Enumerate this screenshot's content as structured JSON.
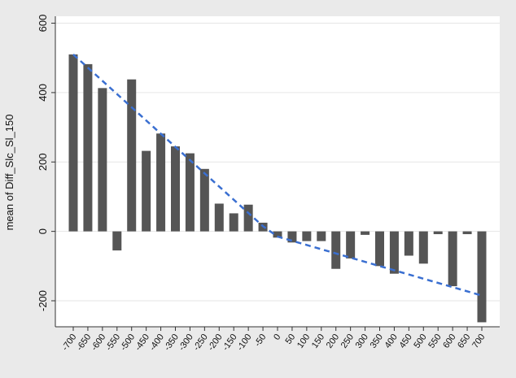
{
  "chart_data": {
    "type": "bar",
    "title": "",
    "xlabel": "",
    "ylabel": "mean of Diff_Slc_Sl_150",
    "x": [
      -700,
      -650,
      -600,
      -550,
      -500,
      -450,
      -400,
      -350,
      -300,
      -250,
      -200,
      -150,
      -100,
      -50,
      0,
      50,
      100,
      150,
      200,
      250,
      300,
      350,
      400,
      450,
      500,
      550,
      600,
      650,
      700
    ],
    "values": [
      510,
      482,
      413,
      -55,
      438,
      232,
      282,
      245,
      225,
      180,
      80,
      52,
      77,
      25,
      -18,
      -32,
      -28,
      -28,
      -108,
      -78,
      -10,
      -100,
      -122,
      -70,
      -93,
      -8,
      -158,
      -8,
      -262
    ],
    "yticks": [
      -200,
      0,
      200,
      400,
      600
    ],
    "ylim": [
      -275,
      620
    ],
    "grid": true,
    "legend": "none",
    "fit_line": {
      "points": [
        [
          -700,
          510
        ],
        [
          -50,
          15
        ],
        [
          0,
          -15
        ],
        [
          700,
          -185
        ]
      ],
      "style": "dashed"
    },
    "colors": {
      "bar": "#555555",
      "fit_line": "#3a6fd1",
      "plot_background": "#ffffff",
      "page_background": "#eaeaea",
      "gridline": "#e6e6e6"
    }
  }
}
